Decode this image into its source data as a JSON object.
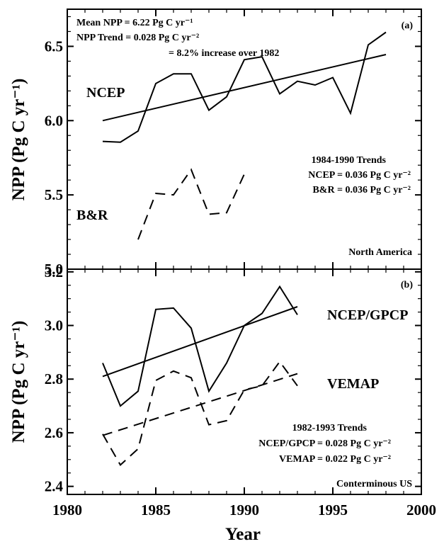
{
  "chart_data": [
    {
      "panel_label": "(a)",
      "type": "line",
      "ylabel": "NPP (Pg C yr⁻¹)",
      "ylim": [
        5.0,
        6.75
      ],
      "yticks": [
        "5.0",
        "5.5",
        "6.0",
        "6.5"
      ],
      "xlim": [
        1980,
        2000
      ],
      "region": "North America",
      "annotation": {
        "mean": "Mean NPP = 6.22 Pg C yr⁻¹",
        "trend": "NPP Trend = 0.028 Pg C yr⁻²",
        "increase": "= 8.2% increase over 1982"
      },
      "trends_box": {
        "title": "1984-1990 Trends",
        "line1": "NCEP = 0.036 Pg C yr⁻²",
        "line2": "B&R = 0.036 Pg C yr⁻²"
      },
      "series": [
        {
          "name": "NCEP",
          "style": "solid",
          "x": [
            1982,
            1983,
            1984,
            1985,
            1986,
            1987,
            1988,
            1989,
            1990,
            1991,
            1992,
            1993,
            1994,
            1995,
            1996,
            1997,
            1998
          ],
          "values": [
            5.86,
            5.855,
            5.93,
            6.25,
            6.315,
            6.315,
            6.07,
            6.16,
            6.41,
            6.43,
            6.18,
            6.265,
            6.24,
            6.29,
            6.05,
            6.51,
            6.595
          ]
        },
        {
          "name": "B&R",
          "style": "dashed",
          "x": [
            1984,
            1985,
            1986,
            1987,
            1988,
            1989,
            1990
          ],
          "values": [
            5.2,
            5.51,
            5.5,
            5.67,
            5.37,
            5.38,
            5.64
          ]
        }
      ],
      "trend_line": {
        "style": "solid",
        "x": [
          1982,
          1998
        ],
        "values": [
          6.0,
          6.445
        ]
      }
    },
    {
      "panel_label": "(b)",
      "type": "line",
      "ylabel": "NPP (Pg C yr⁻¹)",
      "ylim": [
        2.37,
        3.21
      ],
      "yticks": [
        "2.4",
        "2.6",
        "2.8",
        "3.0",
        "3.2"
      ],
      "xlim": [
        1980,
        2000
      ],
      "xticks": [
        "1980",
        "1985",
        "1990",
        "1995",
        "2000"
      ],
      "xlabel": "Year",
      "region": "Conterminous US",
      "trends_box": {
        "title": "1982-1993 Trends",
        "line1": "NCEP/GPCP = 0.028 Pg C yr⁻²",
        "line2": "VEMAP = 0.022 Pg C yr⁻²"
      },
      "series": [
        {
          "name": "NCEP/GPCP",
          "style": "solid",
          "x": [
            1982,
            1983,
            1984,
            1985,
            1986,
            1987,
            1988,
            1989,
            1990,
            1991,
            1992,
            1993
          ],
          "values": [
            2.86,
            2.7,
            2.755,
            3.06,
            3.065,
            2.99,
            2.755,
            2.86,
            3.0,
            3.045,
            3.145,
            3.04
          ]
        },
        {
          "name": "VEMAP",
          "style": "dashed",
          "x": [
            1982,
            1983,
            1984,
            1985,
            1986,
            1987,
            1988,
            1989,
            1990,
            1991,
            1992,
            1993
          ],
          "values": [
            2.595,
            2.48,
            2.54,
            2.795,
            2.83,
            2.805,
            2.63,
            2.645,
            2.76,
            2.775,
            2.865,
            2.775
          ]
        }
      ],
      "trend_lines": [
        {
          "of": "NCEP/GPCP",
          "style": "solid",
          "x": [
            1982,
            1993
          ],
          "values": [
            2.81,
            3.07
          ]
        },
        {
          "of": "VEMAP",
          "style": "dashed",
          "x": [
            1982,
            1993
          ],
          "values": [
            2.59,
            2.82
          ]
        }
      ]
    }
  ]
}
